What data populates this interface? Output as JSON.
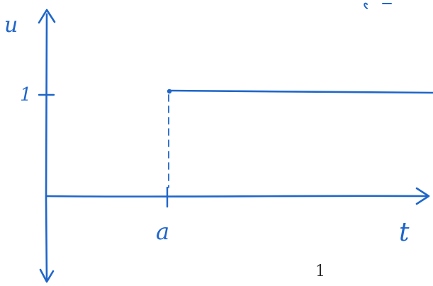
{
  "diagram": {
    "y_axis_label": "u",
    "x_axis_label": "t",
    "y_tick_label": "1",
    "x_tick_label": "a",
    "ink_color": "#1f66c9"
  },
  "page": {
    "number": "1"
  }
}
